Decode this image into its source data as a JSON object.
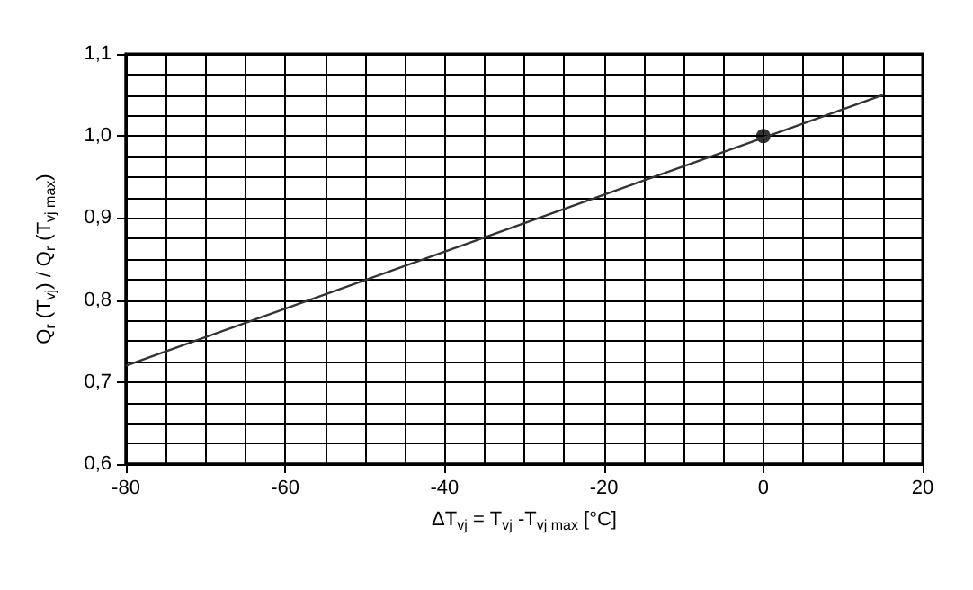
{
  "chart_data": {
    "type": "line",
    "xlabel": "ΔT$_{vj}$ = T$_{vj}$ -T$_{vj max}$ [°C]",
    "ylabel": "Q$_{r}$ (T$_{vj}$) / Q$_{r}$ (T$_{vj max}$)",
    "xlim": [
      -80,
      20
    ],
    "xticks": [
      -80,
      -60,
      -40,
      -20,
      0,
      20
    ],
    "ylim": [
      0.6,
      1.1
    ],
    "yticks": [
      {
        "value": 0.6,
        "label": "0,6"
      },
      {
        "value": 0.7,
        "label": "0,7"
      },
      {
        "value": 0.8,
        "label": "0,8"
      },
      {
        "value": 0.9,
        "label": "0,9"
      },
      {
        "value": 1.0,
        "label": "1,0"
      },
      {
        "value": 1.1,
        "label": "1,1"
      }
    ],
    "grid": true,
    "series": [
      {
        "color": "#333333",
        "x": [
          -80,
          15
        ],
        "values": [
          0.72,
          1.05
        ],
        "marker": "none",
        "line_style": "solid"
      },
      {
        "type": "scatter",
        "color": "#000000",
        "x": [
          0
        ],
        "values": [
          1.0
        ],
        "marker": "circle"
      }
    ]
  }
}
